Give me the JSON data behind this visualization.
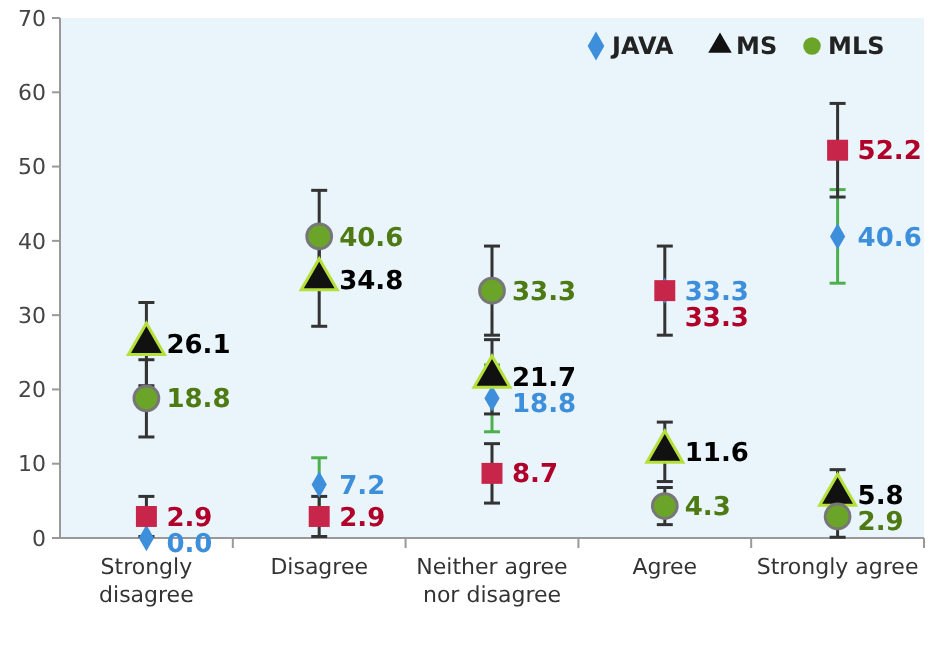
{
  "chart_data": {
    "type": "scatter",
    "categories": [
      "Strongly disagree",
      "Disagree",
      "Neither agree nor disagree",
      "Agree",
      "Strongly agree"
    ],
    "ylim": [
      0,
      70
    ],
    "yticks": [
      0,
      10,
      20,
      30,
      40,
      50,
      60,
      70
    ],
    "grid": false,
    "legend": "top right",
    "series": [
      {
        "name": "JAVA",
        "color": "#3d8fdc",
        "marker": "diamond",
        "values": [
          0.0,
          7.2,
          18.8,
          33.3,
          40.6
        ],
        "value_labels": [
          "0.0",
          "7.2",
          "18.8",
          "33.3",
          "40.6"
        ],
        "errors": [
          null,
          3.6,
          4.5,
          null,
          6.3
        ]
      },
      {
        "color": "#c8254a",
        "marker": "square",
        "values": [
          2.9,
          2.9,
          8.7,
          33.3,
          52.2
        ],
        "value_labels": [
          "2.9",
          "2.9",
          "8.7",
          "33.3",
          "52.2"
        ],
        "errors": [
          2.7,
          2.7,
          4,
          6,
          6.3
        ]
      },
      {
        "name": "MS",
        "color": "#111111",
        "marker": "triangle",
        "values": [
          26.1,
          34.8,
          21.7,
          11.6,
          5.8
        ],
        "value_labels": [
          "26.1",
          "34.8",
          "21.7",
          "11.6",
          "5.8"
        ],
        "errors": [
          5.6,
          6.3,
          5,
          4,
          3.4
        ]
      },
      {
        "name": "MLS",
        "color": "#6aa52a",
        "marker": "circle",
        "values": [
          18.8,
          40.6,
          33.3,
          4.3,
          2.9
        ],
        "value_labels": [
          "18.8",
          "40.6",
          "33.3",
          "4.3",
          "2.9"
        ],
        "errors": [
          5.2,
          6.2,
          6,
          2.5,
          2.8
        ]
      }
    ]
  }
}
